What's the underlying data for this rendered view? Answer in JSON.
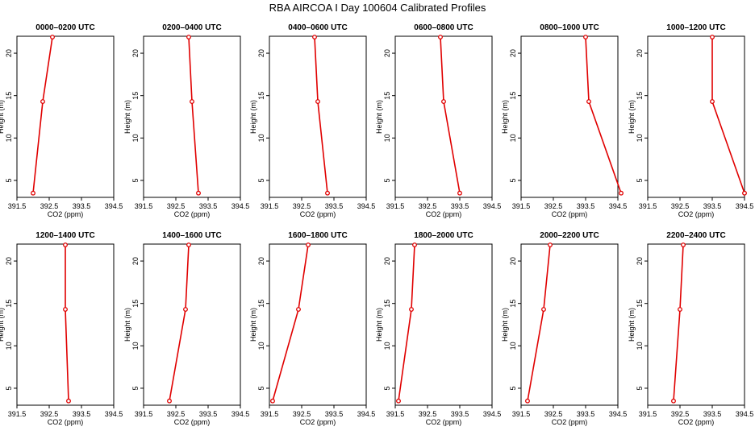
{
  "figure": {
    "title": "RBA AIRCOA I  Day 100604  Calibrated Profiles",
    "xlabel": "CO2 (ppm)",
    "ylabel": "Height (m)",
    "line_color": "#e00000"
  },
  "chart_data": [
    {
      "type": "line",
      "title": "0000–0200 UTC",
      "xlabel": "CO2 (ppm)",
      "ylabel": "Height (m)",
      "xlim": [
        391.5,
        394.5
      ],
      "ylim": [
        3,
        22
      ],
      "xticks": [
        "391.5",
        "392.5",
        "393.5",
        "394.5"
      ],
      "yticks": [
        "5",
        "10",
        "15",
        "20"
      ],
      "x": [
        392.0,
        392.3,
        392.6
      ],
      "y": [
        3.5,
        14.3,
        21.9
      ]
    },
    {
      "type": "line",
      "title": "0200–0400 UTC",
      "xlabel": "CO2 (ppm)",
      "ylabel": "Height (m)",
      "xlim": [
        391.5,
        394.5
      ],
      "ylim": [
        3,
        22
      ],
      "xticks": [
        "391.5",
        "392.5",
        "393.5",
        "394.5"
      ],
      "yticks": [
        "5",
        "10",
        "15",
        "20"
      ],
      "x": [
        392.9,
        393.0,
        393.2
      ],
      "y": [
        21.9,
        14.3,
        3.5
      ]
    },
    {
      "type": "line",
      "title": "0400–0600 UTC",
      "xlabel": "CO2 (ppm)",
      "ylabel": "Height (m)",
      "xlim": [
        391.5,
        394.5
      ],
      "ylim": [
        3,
        22
      ],
      "xticks": [
        "391.5",
        "392.5",
        "393.5",
        "394.5"
      ],
      "yticks": [
        "5",
        "10",
        "15",
        "20"
      ],
      "x": [
        392.9,
        393.0,
        393.3
      ],
      "y": [
        21.9,
        14.3,
        3.5
      ]
    },
    {
      "type": "line",
      "title": "0600–0800 UTC",
      "xlabel": "CO2 (ppm)",
      "ylabel": "Height (m)",
      "xlim": [
        391.5,
        394.5
      ],
      "ylim": [
        3,
        22
      ],
      "xticks": [
        "391.5",
        "392.5",
        "393.5",
        "394.5"
      ],
      "yticks": [
        "5",
        "10",
        "15",
        "20"
      ],
      "x": [
        392.9,
        393.0,
        393.5
      ],
      "y": [
        21.9,
        14.3,
        3.5
      ]
    },
    {
      "type": "line",
      "title": "0800–1000 UTC",
      "xlabel": "CO2 (ppm)",
      "ylabel": "Height (m)",
      "xlim": [
        391.5,
        394.5
      ],
      "ylim": [
        3,
        22
      ],
      "xticks": [
        "391.5",
        "392.5",
        "393.5",
        "394.5"
      ],
      "yticks": [
        "5",
        "10",
        "15",
        "20"
      ],
      "x": [
        393.5,
        393.6,
        394.6
      ],
      "y": [
        21.9,
        14.3,
        3.5
      ]
    },
    {
      "type": "line",
      "title": "1000–1200 UTC",
      "xlabel": "CO2 (ppm)",
      "ylabel": "Height (m)",
      "xlim": [
        391.5,
        394.5
      ],
      "ylim": [
        3,
        22
      ],
      "xticks": [
        "391.5",
        "392.5",
        "393.5",
        "394.5"
      ],
      "yticks": [
        "5",
        "10",
        "15",
        "20"
      ],
      "x": [
        393.5,
        393.5,
        394.5
      ],
      "y": [
        21.9,
        14.3,
        3.5
      ]
    },
    {
      "type": "line",
      "title": "1200–1400 UTC",
      "xlabel": "CO2 (ppm)",
      "ylabel": "Height (m)",
      "xlim": [
        391.5,
        394.5
      ],
      "ylim": [
        3,
        22
      ],
      "xticks": [
        "391.5",
        "392.5",
        "393.5",
        "394.5"
      ],
      "yticks": [
        "5",
        "10",
        "15",
        "20"
      ],
      "x": [
        393.0,
        393.0,
        393.1
      ],
      "y": [
        21.9,
        14.3,
        3.5
      ]
    },
    {
      "type": "line",
      "title": "1400–1600 UTC",
      "xlabel": "CO2 (ppm)",
      "ylabel": "Height (m)",
      "xlim": [
        391.5,
        394.5
      ],
      "ylim": [
        3,
        22
      ],
      "xticks": [
        "391.5",
        "392.5",
        "393.5",
        "394.5"
      ],
      "yticks": [
        "5",
        "10",
        "15",
        "20"
      ],
      "x": [
        392.3,
        392.8,
        392.9
      ],
      "y": [
        3.5,
        14.3,
        21.9
      ]
    },
    {
      "type": "line",
      "title": "1600–1800 UTC",
      "xlabel": "CO2 (ppm)",
      "ylabel": "Height (m)",
      "xlim": [
        391.5,
        394.5
      ],
      "ylim": [
        3,
        22
      ],
      "xticks": [
        "391.5",
        "392.5",
        "393.5",
        "394.5"
      ],
      "yticks": [
        "5",
        "10",
        "15",
        "20"
      ],
      "x": [
        391.6,
        392.4,
        392.7
      ],
      "y": [
        3.5,
        14.3,
        21.9
      ]
    },
    {
      "type": "line",
      "title": "1800–2000 UTC",
      "xlabel": "CO2 (ppm)",
      "ylabel": "Height (m)",
      "xlim": [
        391.5,
        394.5
      ],
      "ylim": [
        3,
        22
      ],
      "xticks": [
        "391.5",
        "392.5",
        "393.5",
        "394.5"
      ],
      "yticks": [
        "5",
        "10",
        "15",
        "20"
      ],
      "x": [
        391.6,
        392.0,
        392.1
      ],
      "y": [
        3.5,
        14.3,
        21.9
      ]
    },
    {
      "type": "line",
      "title": "2000–2200 UTC",
      "xlabel": "CO2 (ppm)",
      "ylabel": "Height (m)",
      "xlim": [
        391.5,
        394.5
      ],
      "ylim": [
        3,
        22
      ],
      "xticks": [
        "391.5",
        "392.5",
        "393.5",
        "394.5"
      ],
      "yticks": [
        "5",
        "10",
        "15",
        "20"
      ],
      "x": [
        391.7,
        392.2,
        392.4
      ],
      "y": [
        3.5,
        14.3,
        21.9
      ]
    },
    {
      "type": "line",
      "title": "2200–2400 UTC",
      "xlabel": "CO2 (ppm)",
      "ylabel": "Height (m)",
      "xlim": [
        391.5,
        394.5
      ],
      "ylim": [
        3,
        22
      ],
      "xticks": [
        "391.5",
        "392.5",
        "393.5",
        "394.5"
      ],
      "yticks": [
        "5",
        "10",
        "15",
        "20"
      ],
      "x": [
        392.3,
        392.5,
        392.6
      ],
      "y": [
        3.5,
        14.3,
        21.9
      ]
    }
  ]
}
